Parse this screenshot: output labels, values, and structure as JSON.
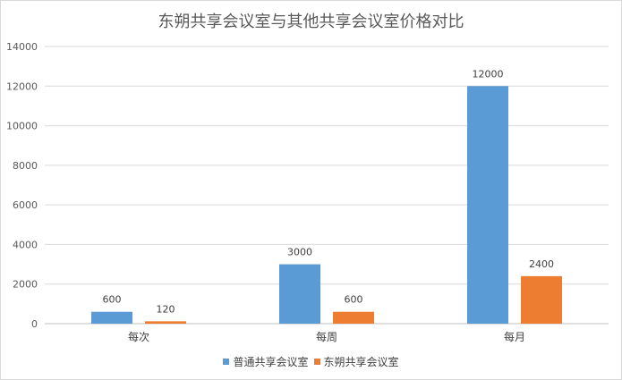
{
  "chart_data": {
    "type": "bar",
    "title": "东朔共享会议室与其他共享会议室价格对比",
    "categories": [
      "每次",
      "每周",
      "每月"
    ],
    "series": [
      {
        "name": "普通共享会议室",
        "values": [
          600,
          3000,
          12000
        ],
        "color": "#5b9bd5"
      },
      {
        "name": "东朔共享会议室",
        "values": [
          120,
          600,
          2400
        ],
        "color": "#ed7d31"
      }
    ],
    "ylim": [
      0,
      14000
    ],
    "yticks": [
      0,
      2000,
      4000,
      6000,
      8000,
      10000,
      12000,
      14000
    ],
    "grid": true,
    "legend": "bottom"
  }
}
